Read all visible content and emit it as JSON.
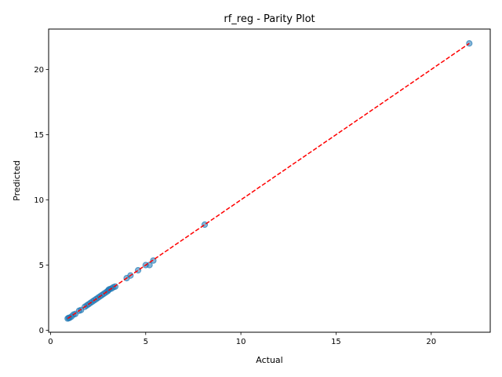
{
  "chart_data": {
    "type": "scatter",
    "title": "rf_reg - Parity Plot",
    "xlabel": "Actual",
    "ylabel": "Predicted",
    "xlim": [
      -0.1,
      23.1
    ],
    "ylim": [
      -0.15,
      23.1
    ],
    "xticks": [
      0,
      5,
      10,
      15,
      20
    ],
    "yticks": [
      0,
      5,
      10,
      15,
      20
    ],
    "grid": false,
    "legend": "none",
    "point_color": "#1f77b4",
    "line_color": "#ff0000",
    "parity_line": {
      "from": 0.9,
      "to": 22.0
    },
    "points": [
      {
        "x": 0.9,
        "y": 0.9
      },
      {
        "x": 0.95,
        "y": 0.95
      },
      {
        "x": 1.0,
        "y": 0.95
      },
      {
        "x": 1.1,
        "y": 1.05
      },
      {
        "x": 1.2,
        "y": 1.2
      },
      {
        "x": 1.3,
        "y": 1.25
      },
      {
        "x": 1.5,
        "y": 1.5
      },
      {
        "x": 1.6,
        "y": 1.55
      },
      {
        "x": 1.8,
        "y": 1.8
      },
      {
        "x": 1.9,
        "y": 1.9
      },
      {
        "x": 2.0,
        "y": 2.0
      },
      {
        "x": 2.1,
        "y": 2.1
      },
      {
        "x": 2.2,
        "y": 2.2
      },
      {
        "x": 2.3,
        "y": 2.3
      },
      {
        "x": 2.4,
        "y": 2.4
      },
      {
        "x": 2.5,
        "y": 2.5
      },
      {
        "x": 2.6,
        "y": 2.6
      },
      {
        "x": 2.7,
        "y": 2.7
      },
      {
        "x": 2.8,
        "y": 2.8
      },
      {
        "x": 2.9,
        "y": 2.9
      },
      {
        "x": 3.0,
        "y": 3.0
      },
      {
        "x": 3.05,
        "y": 3.1
      },
      {
        "x": 3.1,
        "y": 3.15
      },
      {
        "x": 3.2,
        "y": 3.2
      },
      {
        "x": 3.3,
        "y": 3.3
      },
      {
        "x": 3.4,
        "y": 3.35
      },
      {
        "x": 4.0,
        "y": 4.0
      },
      {
        "x": 4.2,
        "y": 4.2
      },
      {
        "x": 4.6,
        "y": 4.6
      },
      {
        "x": 5.0,
        "y": 5.0
      },
      {
        "x": 5.2,
        "y": 5.0
      },
      {
        "x": 5.4,
        "y": 5.35
      },
      {
        "x": 8.1,
        "y": 8.1
      },
      {
        "x": 22.0,
        "y": 22.0
      }
    ]
  }
}
